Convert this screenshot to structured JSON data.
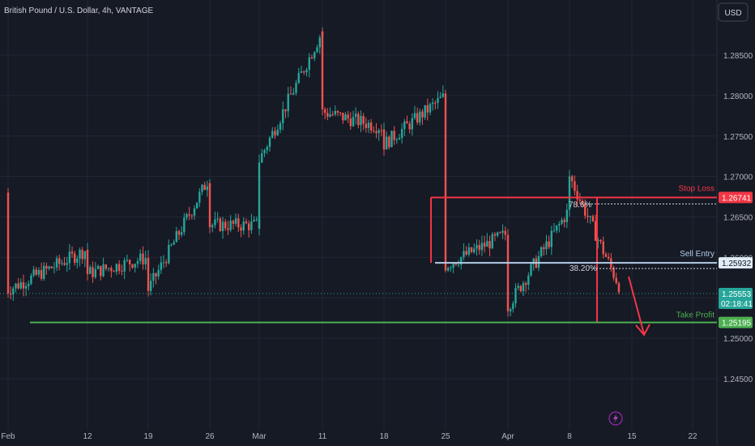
{
  "header": {
    "title": "British Pound / U.S. Dollar, 4h, VANTAGE",
    "currency_button": "USD"
  },
  "colors": {
    "background": "#161a25",
    "grid": "#222735",
    "up": "#26a69a",
    "down": "#ef5350",
    "axis_text": "#b2b5be",
    "stop": "#f23645",
    "entry": "#b3cde8",
    "profit": "#4caf50",
    "current": "#26a69a"
  },
  "chart_data": {
    "type": "candlestick",
    "symbol": "British Pound / U.S. Dollar",
    "interval": "4h",
    "exchange": "VANTAGE",
    "y_range": [
      1.24,
      1.29
    ],
    "x_ticks": [
      "Feb",
      "12",
      "19",
      "26",
      "Mar",
      "11",
      "18",
      "25",
      "Apr",
      "8",
      "15",
      "22"
    ],
    "y_ticks": [
      "1.28500",
      "1.28000",
      "1.27500",
      "1.27000",
      "1.26500",
      "1.26000",
      "1.25500",
      "1.25000",
      "1.24500"
    ],
    "anchors": [
      [
        "Feb",
        1.268
      ],
      [
        "Feb",
        1.256
      ],
      [
        "12",
        1.261
      ],
      [
        "12",
        1.258
      ],
      [
        "19",
        1.26
      ],
      [
        "19",
        1.256
      ],
      [
        "26",
        1.27
      ],
      [
        "26",
        1.264
      ],
      [
        "Mar",
        1.264
      ],
      [
        "Mar",
        1.272
      ],
      [
        "11",
        1.288
      ],
      [
        "11",
        1.278
      ],
      [
        "18",
        1.276
      ],
      [
        "18",
        1.274
      ],
      [
        "25",
        1.28
      ],
      [
        "25",
        1.259
      ],
      [
        "Apr",
        1.263
      ],
      [
        "Apr",
        1.254
      ],
      [
        "8",
        1.266
      ],
      [
        "8",
        1.27
      ],
      [
        "15",
        1.253
      ],
      [
        "15",
        1.2555
      ]
    ],
    "levels": [
      {
        "name": "Stop Loss",
        "price": 1.26741,
        "label": "1.26741",
        "fib": "78.6%"
      },
      {
        "name": "Sell Entry",
        "price": 1.25932,
        "label": "1.25932",
        "fib": "38.20%"
      },
      {
        "name": "Take Profit",
        "price": 1.25195,
        "label": "1.25195"
      }
    ],
    "current_price": {
      "label": "1.25553",
      "countdown": "02:18:41",
      "price": 1.25553
    },
    "grid": true
  }
}
